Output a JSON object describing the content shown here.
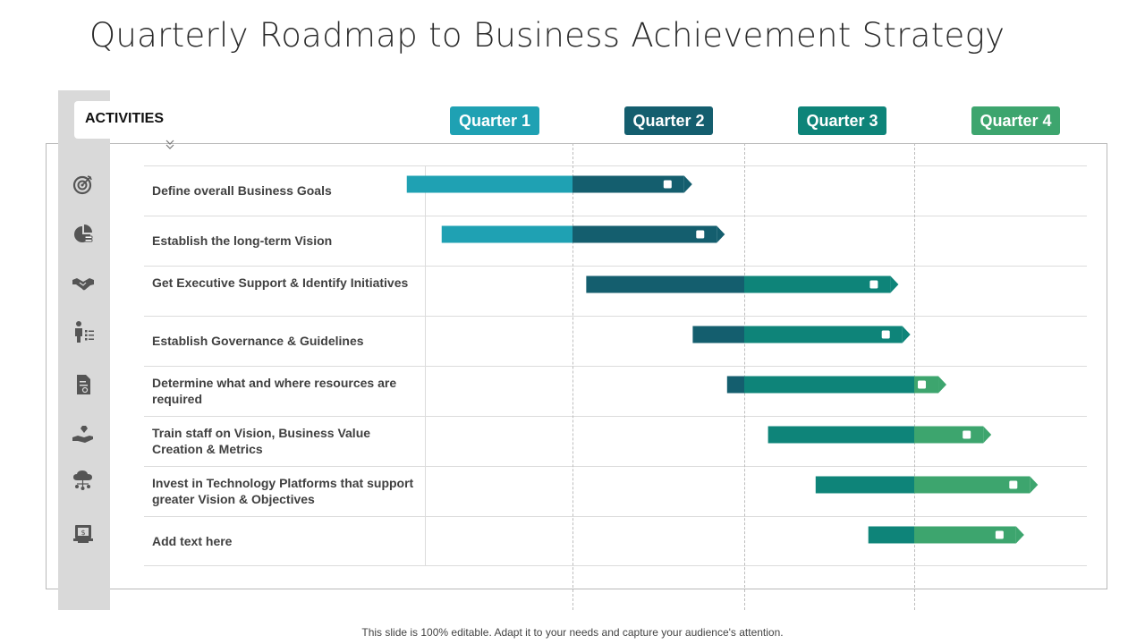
{
  "title": "Quarterly Roadmap to Business Achievement Strategy",
  "activities_header": "ACTIVITIES",
  "quarters": [
    {
      "label": "Quarter 1",
      "color": "#1fa1b3"
    },
    {
      "label": "Quarter 2",
      "color": "#145e6e"
    },
    {
      "label": "Quarter 3",
      "color": "#0e8479"
    },
    {
      "label": "Quarter 4",
      "color": "#3da56e"
    }
  ],
  "rows": [
    {
      "label": "Define overall Business Goals",
      "icon": "target-icon"
    },
    {
      "label": "Establish the long-term Vision",
      "icon": "pie-chart-coins-icon"
    },
    {
      "label": "Get Executive Support & Identify Initiatives",
      "icon": "handshake-icon"
    },
    {
      "label": "Establish Governance & Guidelines",
      "icon": "person-checklist-icon"
    },
    {
      "label": "Determine what and where resources are required",
      "icon": "document-icon"
    },
    {
      "label": "Train staff on Vision, Business Value Creation & Metrics",
      "icon": "hand-diamond-icon"
    },
    {
      "label": "Invest in Technology Platforms that support greater Vision & Objectives",
      "icon": "cloud-network-icon"
    },
    {
      "label": "Add  text here",
      "icon": "monitor-dollar-icon"
    }
  ],
  "chart_data": {
    "type": "gantt",
    "x_unit": "quarter",
    "xlim": [
      0,
      4
    ],
    "tasks": [
      {
        "task": "Define overall Business Goals",
        "start": 0.05,
        "end": 1.65
      },
      {
        "task": "Establish the long-term Vision",
        "start": 0.25,
        "end": 1.84
      },
      {
        "task": "Get Executive Support & Identify Initiatives",
        "start": 1.08,
        "end": 2.86
      },
      {
        "task": "Establish Governance & Guidelines",
        "start": 1.7,
        "end": 2.93
      },
      {
        "task": "Determine what and where resources are required",
        "start": 1.9,
        "end": 3.14
      },
      {
        "task": "Train staff on Vision, Business Value Creation & Metrics",
        "start": 2.14,
        "end": 3.4
      },
      {
        "task": "Invest in Technology Platforms that support greater Vision & Objectives",
        "start": 2.42,
        "end": 3.67
      },
      {
        "task": "Add  text here",
        "start": 2.73,
        "end": 3.59
      }
    ]
  },
  "footer": "This slide is 100% editable. Adapt it to your needs and capture your audience's attention."
}
